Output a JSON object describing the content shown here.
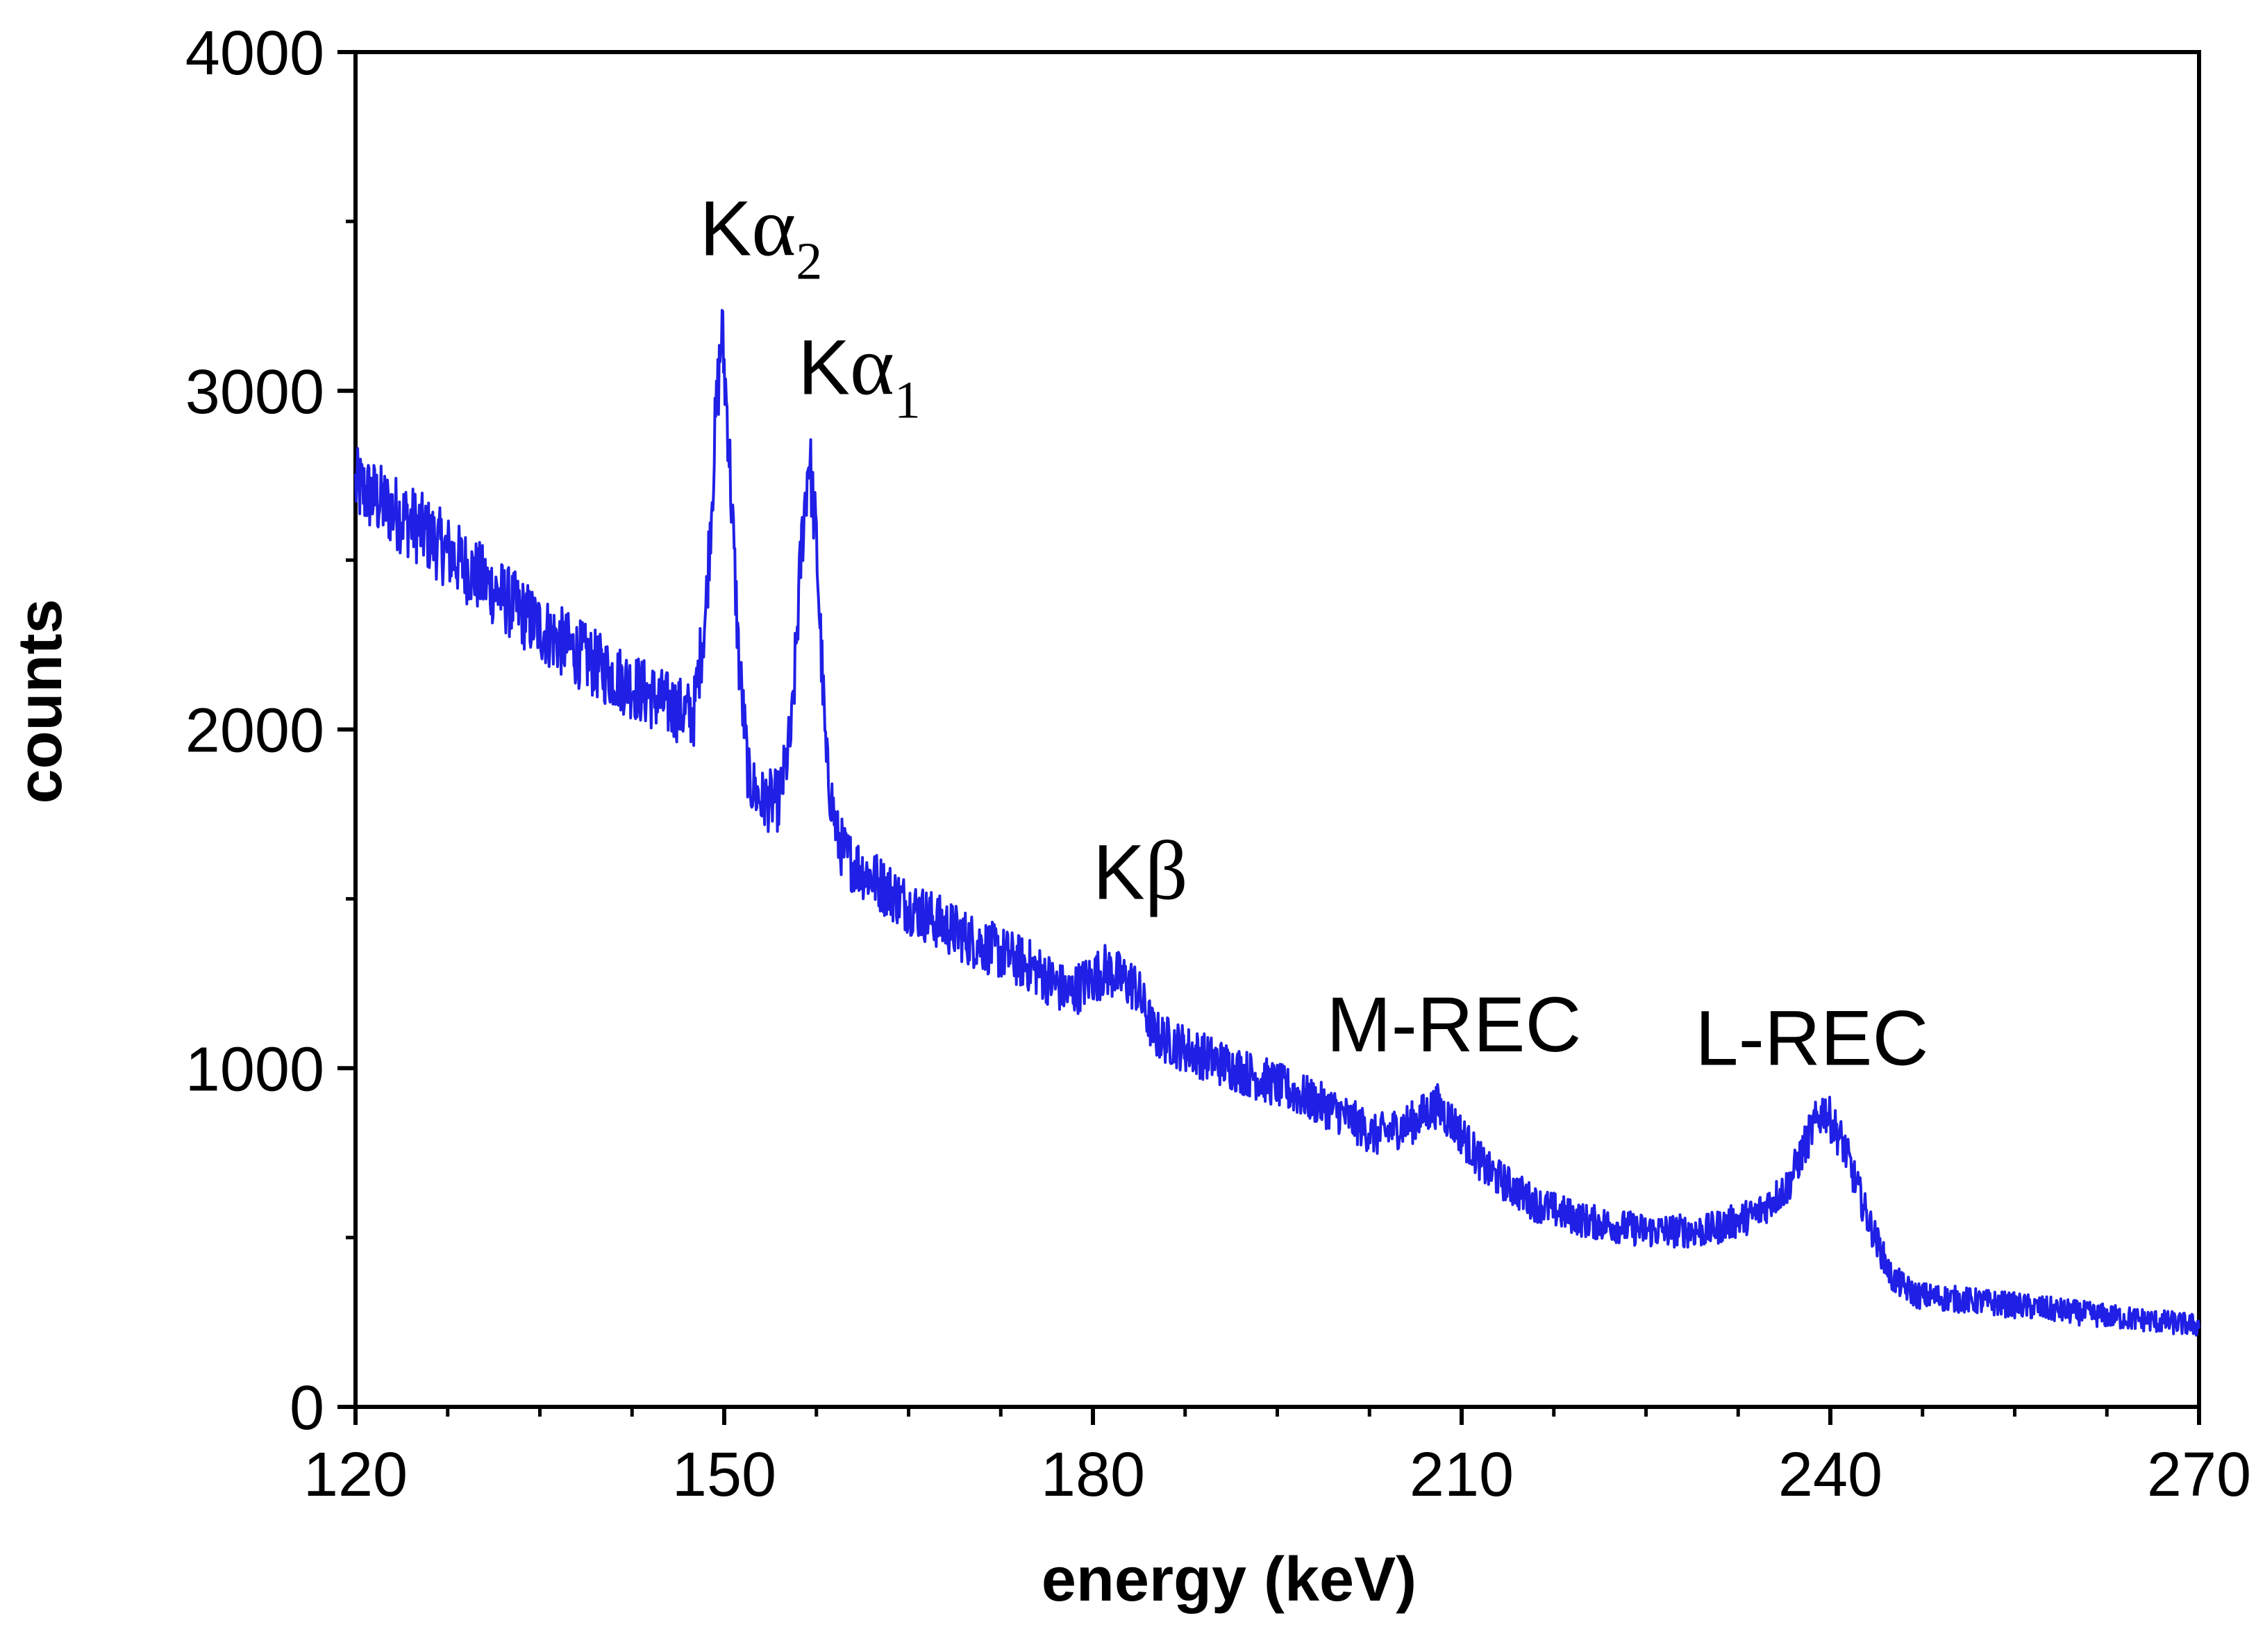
{
  "chart_data": {
    "type": "line",
    "title": "",
    "xlabel": "energy (keV)",
    "ylabel": "counts",
    "xlim": [
      120,
      270
    ],
    "ylim": [
      0,
      4000
    ],
    "x_ticks": [
      120,
      150,
      180,
      210,
      240,
      270
    ],
    "y_ticks": [
      0,
      1000,
      2000,
      3000,
      4000
    ],
    "x_minor_step": 7.5,
    "y_minor_step": 500,
    "grid": false,
    "legend": "none",
    "line_color": "#1f1fe6",
    "series": [
      {
        "x": [
          120,
          125,
          130,
          135,
          140,
          145,
          147.5,
          148.5,
          149.3,
          149.8,
          150.3,
          151.2,
          152,
          153,
          154.5,
          155.5,
          156.3,
          156.9,
          157.5,
          158.3,
          159.2,
          160,
          165,
          170,
          175,
          178,
          181,
          183.5,
          185,
          188,
          195,
          200,
          203,
          206,
          208,
          209.5,
          212,
          216,
          220,
          225,
          230,
          234,
          236.5,
          238.5,
          239.5,
          241,
          243,
          245,
          247,
          255,
          262,
          270
        ],
        "y": [
          2720,
          2600,
          2450,
          2300,
          2180,
          2080,
          2040,
          2350,
          2900,
          3180,
          2900,
          2200,
          1850,
          1790,
          1790,
          2000,
          2550,
          2820,
          2550,
          1900,
          1680,
          1620,
          1480,
          1380,
          1300,
          1220,
          1290,
          1240,
          1100,
          1050,
          950,
          870,
          800,
          840,
          890,
          830,
          700,
          600,
          550,
          520,
          520,
          570,
          650,
          820,
          880,
          780,
          560,
          380,
          330,
          300,
          270,
          240
        ]
      }
    ],
    "annotations": [
      {
        "main": "K",
        "greek": "α",
        "sub": "2",
        "x": 148,
        "y": 3400
      },
      {
        "main": "K",
        "greek": "α",
        "sub": "1",
        "x": 156,
        "y": 2990
      },
      {
        "main": "K",
        "greek": "β",
        "sub": "",
        "x": 180,
        "y": 1500
      },
      {
        "main": "M-REC",
        "greek": "",
        "sub": "",
        "x": 199,
        "y": 1050
      },
      {
        "main": "L-REC",
        "greek": "",
        "sub": "",
        "x": 229,
        "y": 1010
      }
    ]
  }
}
